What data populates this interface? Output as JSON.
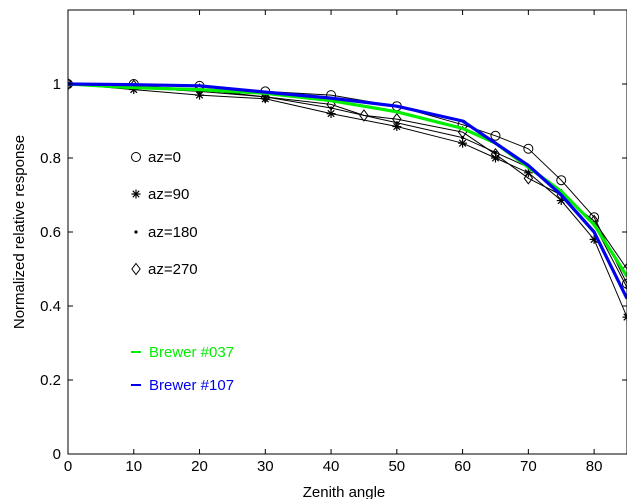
{
  "chart_data": {
    "type": "line",
    "xlabel": "Zenith angle",
    "ylabel": "Normalized relative response",
    "xlim": [
      0,
      85
    ],
    "ylim": [
      0,
      1.2
    ],
    "x_ticks": [
      "0",
      "10",
      "20",
      "30",
      "40",
      "50",
      "60",
      "70",
      "80"
    ],
    "y_ticks": [
      "0",
      "0.2",
      "0.4",
      "0.6",
      "0.8",
      "1"
    ],
    "grid": false,
    "legend_markers": [
      {
        "label": "az=0",
        "marker": "circle"
      },
      {
        "label": "az=90",
        "marker": "asterisk"
      },
      {
        "label": "az=180",
        "marker": "dot"
      },
      {
        "label": "az=270",
        "marker": "diamond"
      }
    ],
    "legend_lines": [
      {
        "label": "Brewer #037",
        "color": "#00ee00"
      },
      {
        "label": "Brewer #107",
        "color": "#0000ee"
      }
    ],
    "series": [
      {
        "marker": "circle",
        "color": "#000000",
        "x": [
          0,
          10,
          20,
          30,
          40,
          50,
          60,
          65,
          70,
          75,
          80,
          85
        ],
        "y": [
          1.0,
          1.0,
          0.995,
          0.98,
          0.97,
          0.94,
          0.89,
          0.86,
          0.825,
          0.74,
          0.64,
          0.46
        ]
      },
      {
        "marker": "asterisk",
        "color": "#000000",
        "x": [
          0,
          10,
          20,
          30,
          40,
          50,
          60,
          65,
          70,
          75,
          80,
          85
        ],
        "y": [
          1.0,
          0.985,
          0.97,
          0.96,
          0.92,
          0.885,
          0.84,
          0.8,
          0.76,
          0.685,
          0.58,
          0.37
        ]
      },
      {
        "marker": "dot",
        "color": "#000000",
        "x": [
          0,
          10,
          20,
          30,
          40,
          50,
          60,
          65,
          70,
          75,
          80,
          85
        ],
        "y": [
          1.0,
          0.99,
          0.98,
          0.965,
          0.935,
          0.895,
          0.855,
          0.815,
          0.775,
          0.705,
          0.62,
          0.45
        ]
      },
      {
        "marker": "diamond",
        "color": "#000000",
        "x": [
          0,
          10,
          20,
          30,
          40,
          45,
          50,
          60,
          65,
          70,
          75,
          80,
          85
        ],
        "y": [
          1.0,
          0.995,
          0.985,
          0.965,
          0.945,
          0.915,
          0.905,
          0.87,
          0.81,
          0.745,
          0.7,
          0.63,
          0.5
        ]
      },
      {
        "name": "Brewer #037",
        "color": "#00ee00",
        "marker": "none",
        "x": [
          0,
          10,
          20,
          30,
          40,
          50,
          60,
          65,
          70,
          75,
          80,
          85
        ],
        "y": [
          1.0,
          0.99,
          0.985,
          0.975,
          0.955,
          0.925,
          0.88,
          0.84,
          0.775,
          0.71,
          0.62,
          0.48
        ]
      },
      {
        "name": "Brewer #107",
        "color": "#0000ee",
        "marker": "none",
        "x": [
          0,
          10,
          20,
          30,
          40,
          50,
          60,
          65,
          70,
          75,
          80,
          85
        ],
        "y": [
          1.0,
          0.998,
          0.995,
          0.978,
          0.962,
          0.94,
          0.9,
          0.84,
          0.78,
          0.7,
          0.6,
          0.42
        ]
      }
    ]
  }
}
